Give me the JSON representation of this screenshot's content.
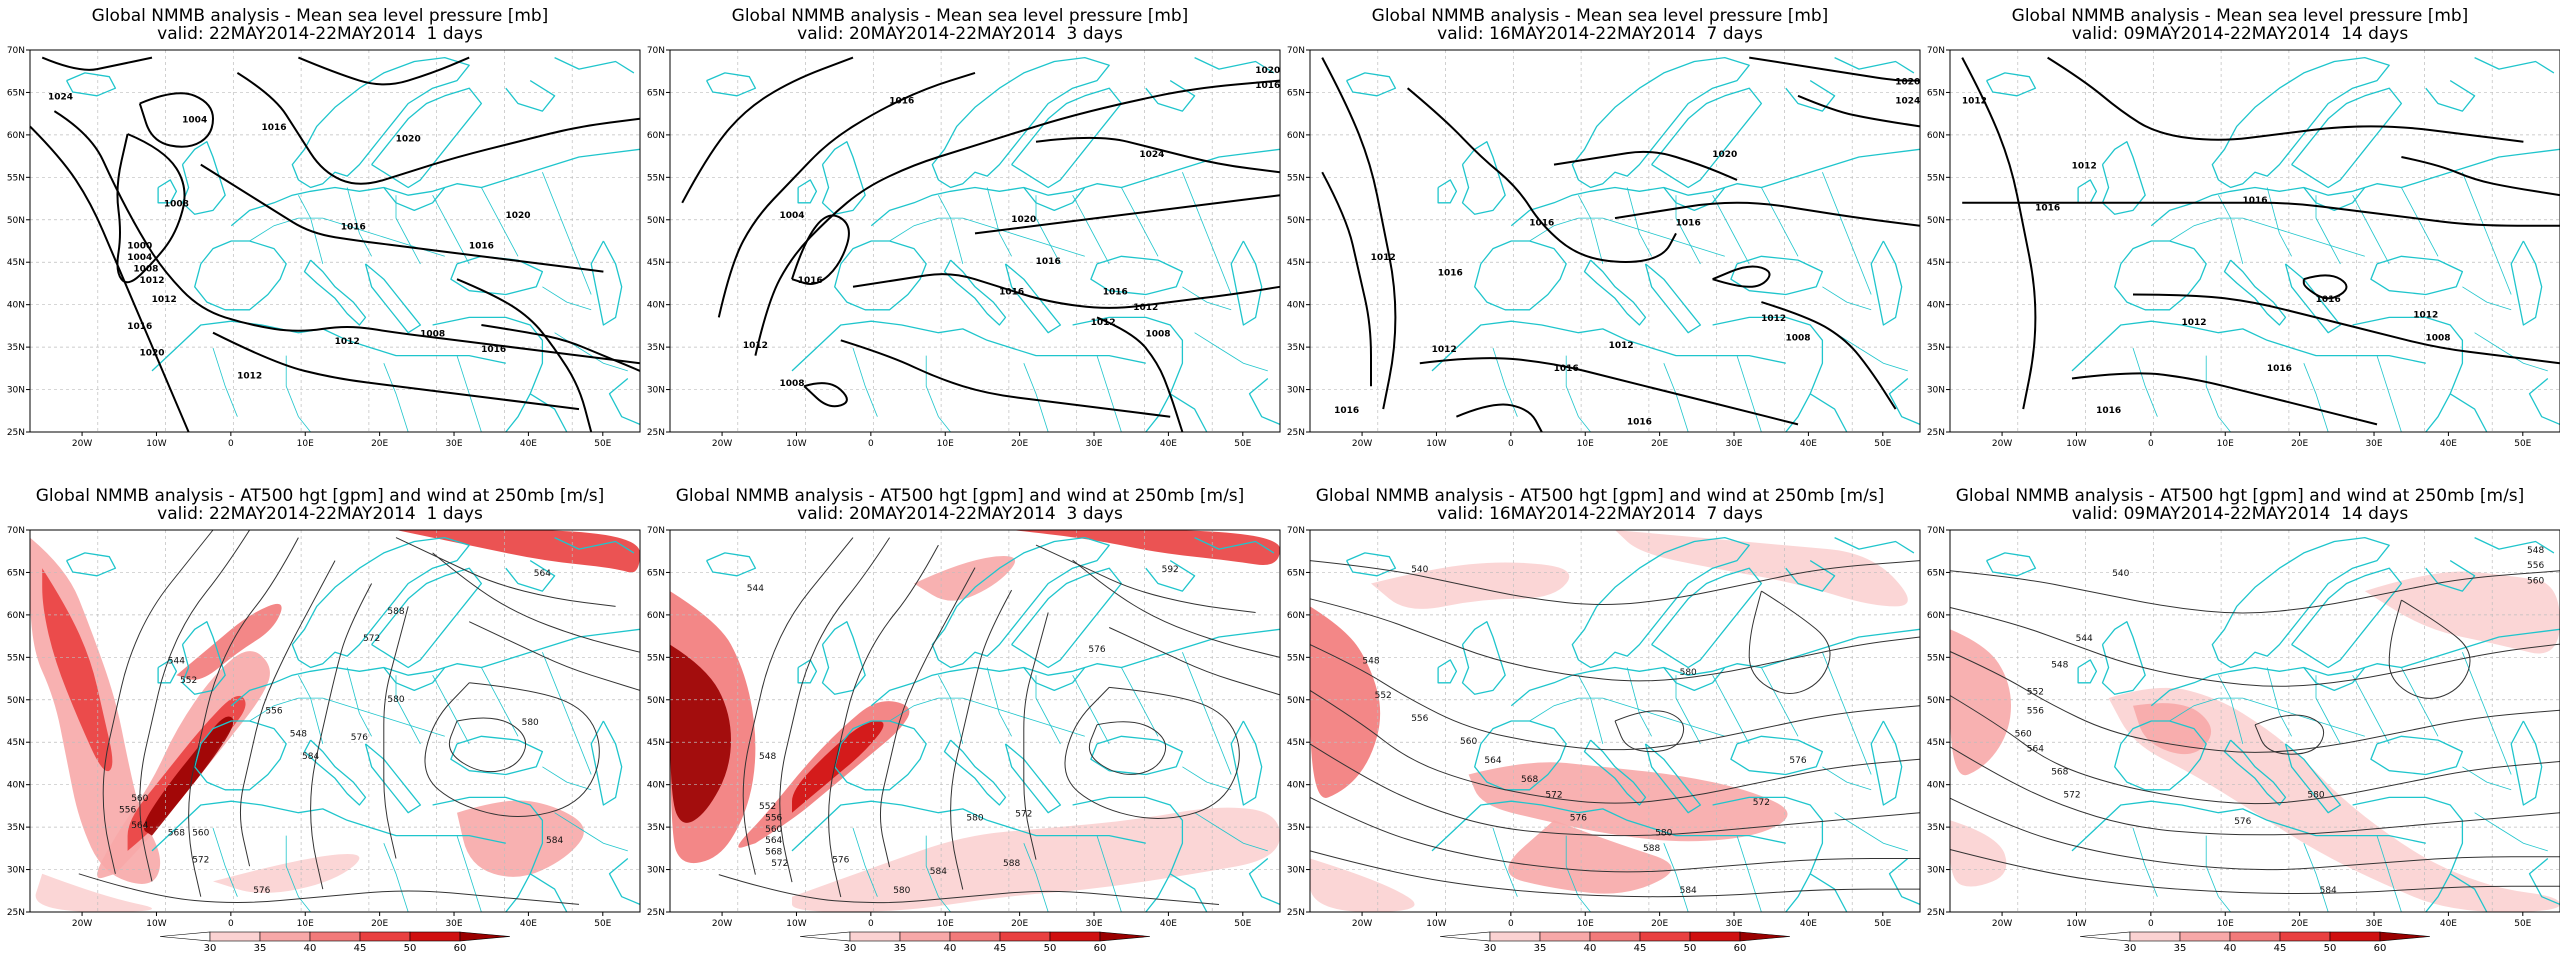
{
  "panels": [
    {
      "row": 0,
      "col": 0,
      "title1": "Global NMMB analysis - Mean sea level pressure [mb]",
      "title2": "valid: 22MAY2014-22MAY2014  1 days"
    },
    {
      "row": 0,
      "col": 1,
      "title1": "Global NMMB analysis - Mean sea level pressure [mb]",
      "title2": "valid: 20MAY2014-22MAY2014  3 days"
    },
    {
      "row": 0,
      "col": 2,
      "title1": "Global NMMB analysis - Mean sea level pressure [mb]",
      "title2": "valid: 16MAY2014-22MAY2014  7 days"
    },
    {
      "row": 0,
      "col": 3,
      "title1": "Global NMMB analysis - Mean sea level pressure [mb]",
      "title2": "valid: 09MAY2014-22MAY2014  14 days"
    },
    {
      "row": 1,
      "col": 0,
      "title1": "Global NMMB analysis - AT500 hgt [gpm] and wind at 250mb [m/s]",
      "title2": "valid: 22MAY2014-22MAY2014  1 days"
    },
    {
      "row": 1,
      "col": 1,
      "title1": "Global NMMB analysis - AT500 hgt [gpm] and wind at 250mb [m/s]",
      "title2": "valid: 20MAY2014-22MAY2014  3 days"
    },
    {
      "row": 1,
      "col": 2,
      "title1": "Global NMMB analysis - AT500 hgt [gpm] and wind at 250mb [m/s]",
      "title2": "valid: 16MAY2014-22MAY2014  7 days"
    },
    {
      "row": 1,
      "col": 3,
      "title1": "Global NMMB analysis - AT500 hgt [gpm] and wind at 250mb [m/s]",
      "title2": "valid: 09MAY2014-22MAY2014  14 days"
    }
  ],
  "lon_ticks": [
    "20W",
    "10W",
    "0",
    "10E",
    "20E",
    "30E",
    "40E",
    "50E"
  ],
  "lat_ticks": [
    "70N",
    "65N",
    "60N",
    "55N",
    "50N",
    "45N",
    "40N",
    "35N",
    "30N",
    "25N"
  ],
  "mslp_labels": [
    [
      "1024",
      "1004",
      "1008",
      "1012",
      "1016",
      "1020",
      "1000",
      "1004",
      "1008",
      "1012",
      "1016",
      "1016",
      "1012",
      "1012",
      "1008",
      "1016",
      "1020",
      "1020",
      "1016"
    ],
    [
      "1004",
      "1008",
      "1012",
      "1016",
      "1020",
      "1024",
      "1016",
      "1016",
      "1012",
      "1008",
      "1012",
      "1016",
      "1016",
      "1020",
      "1016"
    ],
    [
      "1012",
      "1012",
      "1016",
      "1016",
      "1012",
      "1016",
      "1012",
      "1008",
      "1016",
      "1020",
      "1020",
      "1024",
      "1016",
      "1016"
    ],
    [
      "1012",
      "1012",
      "1016",
      "1016",
      "1012",
      "1016",
      "1012",
      "1008",
      "1016",
      "1016"
    ]
  ],
  "hgt_labels": [
    [
      "544",
      "552",
      "556",
      "560",
      "564",
      "568",
      "572",
      "576",
      "580",
      "584",
      "588",
      "572",
      "580",
      "576",
      "584",
      "560",
      "548",
      "556",
      "564"
    ],
    [
      "544",
      "548",
      "552",
      "556",
      "560",
      "564",
      "568",
      "572",
      "576",
      "580",
      "584",
      "588",
      "572",
      "580",
      "592",
      "576"
    ],
    [
      "540",
      "548",
      "552",
      "556",
      "560",
      "564",
      "568",
      "572",
      "576",
      "580",
      "584",
      "588",
      "572",
      "576",
      "580"
    ],
    [
      "540",
      "544",
      "548",
      "552",
      "556",
      "560",
      "564",
      "568",
      "572",
      "576",
      "580",
      "584",
      "548",
      "556",
      "560"
    ]
  ],
  "colorbar": {
    "ticks": [
      "30",
      "35",
      "40",
      "45",
      "50",
      "60"
    ],
    "colors": [
      "#ffffff",
      "#fbd2d2",
      "#f7a8a8",
      "#f27a7a",
      "#e94040",
      "#d01010",
      "#9a0000"
    ]
  },
  "colors": {
    "coast": "#1fc5cc",
    "contour_mslp": "#000000",
    "contour_hgt": "#333333",
    "grid": "#bdbdbd"
  }
}
